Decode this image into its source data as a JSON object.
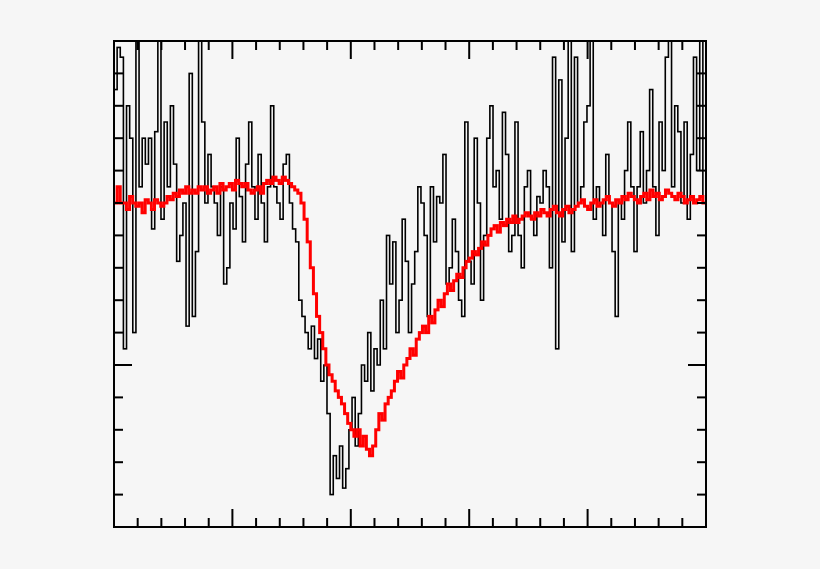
{
  "chart_data": {
    "type": "line",
    "title": "",
    "xlabel": "",
    "ylabel": "",
    "xlim": [
      0,
      100
    ],
    "ylim": [
      0,
      1.5
    ],
    "grid": false,
    "legend": "none",
    "tick_labels": "none",
    "x_major_ticks": [
      20,
      40,
      60,
      80
    ],
    "x_minor_step": 4,
    "y_major_ticks": [
      0.5
    ],
    "y_minor_step": 0.1,
    "series": [
      {
        "style": "step",
        "color": "#000000",
        "values": [
          1.35,
          1.48,
          1.45,
          0.55,
          1.3,
          1.2,
          0.6,
          1.52,
          1.05,
          1.2,
          1.12,
          1.2,
          0.92,
          1.22,
          1.5,
          0.95,
          1.25,
          1.05,
          1.3,
          1.12,
          0.82,
          0.9,
          1.0,
          0.62,
          1.4,
          0.65,
          0.85,
          1.58,
          1.25,
          1.0,
          1.15,
          1.05,
          1.0,
          0.9,
          1.05,
          0.75,
          0.8,
          1.0,
          0.92,
          1.2,
          1.02,
          0.88,
          1.12,
          1.25,
          1.05,
          0.95,
          1.15,
          1.0,
          0.88,
          1.05,
          1.3,
          1.05,
          1.0,
          0.95,
          1.12,
          1.15,
          1.0,
          0.92,
          0.88,
          0.7,
          0.65,
          0.6,
          0.55,
          0.62,
          0.52,
          0.58,
          0.45,
          0.5,
          0.35,
          0.1,
          0.22,
          0.15,
          0.25,
          0.12,
          0.18,
          0.3,
          0.4,
          0.25,
          0.35,
          0.5,
          0.45,
          0.6,
          0.42,
          0.55,
          0.5,
          0.7,
          0.55,
          0.9,
          0.75,
          0.88,
          0.6,
          0.7,
          0.95,
          0.82,
          0.6,
          0.75,
          0.85,
          1.05,
          1.0,
          0.9,
          0.65,
          1.05,
          0.88,
          1.02,
          1.0,
          1.15,
          0.75,
          0.8,
          0.95,
          0.85,
          0.7,
          0.65,
          1.25,
          0.82,
          0.75,
          1.2,
          1.0,
          0.7,
          0.9,
          1.2,
          1.3,
          1.05,
          1.1,
          0.95,
          1.28,
          1.15,
          0.85,
          0.9,
          1.25,
          0.9,
          0.8,
          1.05,
          1.1,
          0.95,
          0.9,
          1.02,
          1.0,
          1.1,
          1.05,
          0.8,
          1.45,
          0.55,
          1.38,
          0.88,
          1.2,
          1.55,
          0.85,
          1.45,
          1.0,
          1.05,
          1.25,
          1.3,
          1.55,
          0.95,
          1.05,
          1.0,
          0.9,
          1.15,
          1.0,
          0.85,
          0.65,
          1.0,
          0.95,
          1.1,
          1.25,
          1.05,
          0.85,
          1.05,
          1.22,
          1.0,
          1.1,
          1.35,
          1.05,
          0.9,
          1.25,
          1.1,
          1.45,
          1.55,
          1.05,
          1.3,
          1.22,
          1.0,
          1.25,
          0.95,
          1.15,
          1.45,
          1.1,
          1.55,
          1.0
        ]
      },
      {
        "style": "step",
        "color": "#ff0000",
        "values": [
          1.0,
          1.05,
          1.0,
          1.0,
          0.98,
          1.02,
          1.0,
          0.99,
          1.0,
          0.97,
          1.01,
          1.0,
          0.98,
          1.01,
          1.0,
          0.99,
          1.0,
          1.02,
          1.01,
          1.03,
          1.02,
          1.04,
          1.03,
          1.05,
          1.03,
          1.04,
          1.03,
          1.05,
          1.04,
          1.05,
          1.03,
          1.04,
          1.05,
          1.03,
          1.06,
          1.04,
          1.05,
          1.06,
          1.04,
          1.07,
          1.06,
          1.05,
          1.06,
          1.04,
          1.03,
          1.04,
          1.05,
          1.03,
          1.06,
          1.07,
          1.06,
          1.08,
          1.07,
          1.06,
          1.08,
          1.07,
          1.06,
          1.05,
          1.04,
          1.03,
          1.0,
          0.95,
          0.88,
          0.8,
          0.72,
          0.65,
          0.6,
          0.55,
          0.5,
          0.47,
          0.45,
          0.42,
          0.4,
          0.38,
          0.35,
          0.32,
          0.3,
          0.28,
          0.3,
          0.25,
          0.28,
          0.24,
          0.22,
          0.25,
          0.3,
          0.35,
          0.33,
          0.38,
          0.4,
          0.42,
          0.45,
          0.48,
          0.46,
          0.5,
          0.52,
          0.55,
          0.53,
          0.58,
          0.6,
          0.62,
          0.6,
          0.65,
          0.63,
          0.67,
          0.7,
          0.68,
          0.72,
          0.75,
          0.73,
          0.76,
          0.78,
          0.77,
          0.8,
          0.82,
          0.83,
          0.85,
          0.84,
          0.86,
          0.88,
          0.87,
          0.9,
          0.92,
          0.93,
          0.91,
          0.94,
          0.93,
          0.95,
          0.94,
          0.96,
          0.94,
          0.95,
          0.96,
          0.97,
          0.96,
          0.95,
          0.97,
          0.96,
          0.98,
          0.97,
          0.96,
          0.98,
          0.99,
          0.97,
          0.96,
          0.98,
          0.99,
          0.97,
          0.98,
          0.99,
          1.0,
          1.01,
          0.99,
          0.98,
          1.0,
          1.01,
          0.99,
          1.0,
          1.01,
          1.02,
          1.0,
          0.99,
          1.01,
          1.0,
          1.02,
          1.01,
          1.03,
          1.02,
          1.01,
          1.0,
          1.02,
          1.03,
          1.01,
          1.04,
          1.02,
          1.03,
          1.01,
          1.02,
          1.04,
          1.03,
          1.02,
          1.01,
          1.03,
          1.02,
          1.0,
          1.01,
          1.02,
          1.0,
          1.01,
          1.02,
          1.0
        ]
      }
    ]
  }
}
